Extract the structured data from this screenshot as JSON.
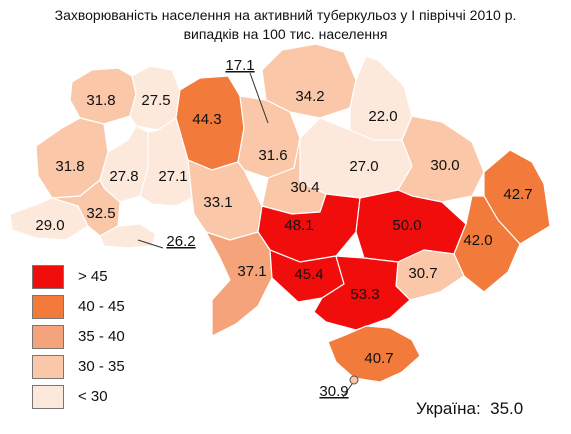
{
  "title": {
    "line1": "Захворюваність населення на активний туберкульоз у І півріччі 2010 р.",
    "line2": "випадків на 100 тис. населення"
  },
  "colors": {
    "gt45": "#f20d0d",
    "r40_45": "#f27a3a",
    "r35_40": "#f5a37a",
    "r30_35": "#fac7a8",
    "lt30": "#fde8dc",
    "border": "#ffffff",
    "outline": "#777777"
  },
  "legend": [
    {
      "label": "> 45",
      "class": "gt45"
    },
    {
      "label": "40 - 45",
      "class": "r40_45"
    },
    {
      "label": "35 - 40",
      "class": "r35_40"
    },
    {
      "label": "30 - 35",
      "class": "r30_35"
    },
    {
      "label": "< 30",
      "class": "lt30"
    }
  ],
  "regions": [
    {
      "value": "31.8",
      "class": "r30_35"
    },
    {
      "value": "27.5",
      "class": "lt30"
    },
    {
      "value": "44.3",
      "class": "r40_45"
    },
    {
      "value": "17.1",
      "class": "lt30"
    },
    {
      "value": "34.2",
      "class": "r30_35"
    },
    {
      "value": "22.0",
      "class": "lt30"
    },
    {
      "value": "31.6",
      "class": "r30_35"
    },
    {
      "value": "31.8",
      "class": "r30_35"
    },
    {
      "value": "27.8",
      "class": "lt30"
    },
    {
      "value": "27.1",
      "class": "lt30"
    },
    {
      "value": "27.0",
      "class": "lt30"
    },
    {
      "value": "30.0",
      "class": "r30_35"
    },
    {
      "value": "30.4",
      "class": "r30_35"
    },
    {
      "value": "33.1",
      "class": "r30_35"
    },
    {
      "value": "42.7",
      "class": "r40_45"
    },
    {
      "value": "29.0",
      "class": "lt30"
    },
    {
      "value": "32.5",
      "class": "r30_35"
    },
    {
      "value": "26.2",
      "class": "lt30"
    },
    {
      "value": "48.1",
      "class": "gt45"
    },
    {
      "value": "50.0",
      "class": "gt45"
    },
    {
      "value": "42.0",
      "class": "r40_45"
    },
    {
      "value": "37.1",
      "class": "r35_40"
    },
    {
      "value": "45.4",
      "class": "gt45"
    },
    {
      "value": "30.7",
      "class": "r30_35"
    },
    {
      "value": "53.3",
      "class": "gt45"
    },
    {
      "value": "40.7",
      "class": "r40_45"
    },
    {
      "value": "30.9",
      "class": "r30_35"
    }
  ],
  "total": {
    "label": "Україна:",
    "value": "35.0"
  }
}
